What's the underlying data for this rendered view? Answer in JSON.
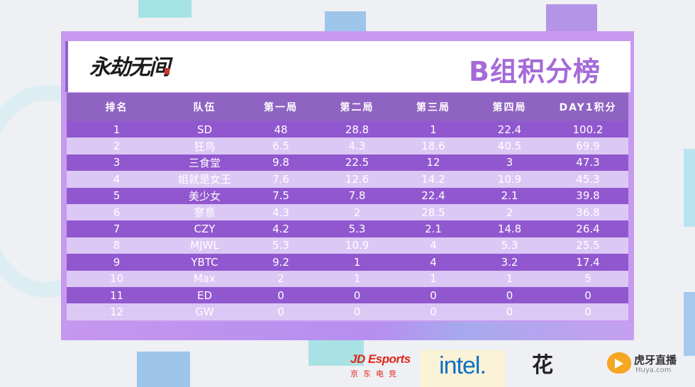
{
  "header": {
    "logo_text": "永劫无间",
    "title": "B组积分榜"
  },
  "table": {
    "columns": [
      "排名",
      "队伍",
      "第一局",
      "第二局",
      "第三局",
      "第四局",
      "DAY1积分"
    ],
    "rows": [
      [
        "1",
        "SD",
        "48",
        "28.8",
        "1",
        "22.4",
        "100.2"
      ],
      [
        "2",
        "狂鸟",
        "6.5",
        "4.3",
        "18.6",
        "40.5",
        "69.9"
      ],
      [
        "3",
        "三食堂",
        "9.8",
        "22.5",
        "12",
        "3",
        "47.3"
      ],
      [
        "4",
        "姐就是女王",
        "7.6",
        "12.6",
        "14.2",
        "10.9",
        "45.3"
      ],
      [
        "5",
        "美少女",
        "7.5",
        "7.8",
        "22.4",
        "2.1",
        "39.8"
      ],
      [
        "6",
        "寥意",
        "4.3",
        "2",
        "28.5",
        "2",
        "36.8"
      ],
      [
        "7",
        "CZY",
        "4.2",
        "5.3",
        "2.1",
        "14.8",
        "26.4"
      ],
      [
        "8",
        "MJWL",
        "5.3",
        "10.9",
        "4",
        "5.3",
        "25.5"
      ],
      [
        "9",
        "YBTC",
        "9.2",
        "1",
        "4",
        "3.2",
        "17.4"
      ],
      [
        "10",
        "Max",
        "2",
        "1",
        "1",
        "1",
        "5"
      ],
      [
        "11",
        "ED",
        "0",
        "0",
        "0",
        "0",
        "0"
      ],
      [
        "12",
        "GW",
        "0",
        "0",
        "0",
        "0",
        "0"
      ]
    ]
  },
  "sponsors": {
    "jd_main": "JD Esports",
    "jd_sub": "京东电竞",
    "intel": "intel.",
    "hua": "花",
    "huya_name": "虎牙直播",
    "huya_url": "Huya.com"
  },
  "colors": {
    "header_row": "#8f63c2",
    "row_dark": "#9157cf",
    "row_light": "#dcc8f5",
    "title": "#a56ad8"
  },
  "icons": [
    "huya-logo-icon"
  ]
}
